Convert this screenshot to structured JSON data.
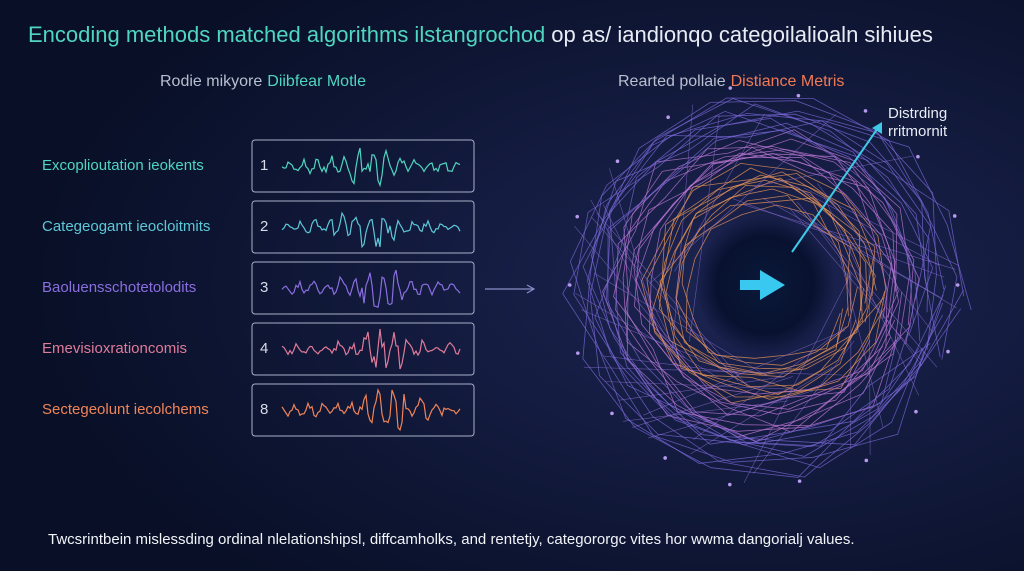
{
  "header": {
    "title_a": "Encoding methods matched algorithms ilstangrochod",
    "title_b": "op as/ iandionqo categoilalioaln sihiues"
  },
  "left_panel": {
    "subtitle_a": "Rodie mikyore",
    "subtitle_b": "Diibfear Motle",
    "rows": [
      {
        "label": "Excoplioutation ieokents",
        "number": "1"
      },
      {
        "label": "Categeogamt ieocloitmits",
        "number": "2"
      },
      {
        "label": "Baoluensschotetolodits",
        "number": "3"
      },
      {
        "label": "Emevisioxrationcomis",
        "number": "4"
      },
      {
        "label": "Sectegeolunt iecolchems",
        "number": "8"
      }
    ]
  },
  "right_panel": {
    "subtitle_a": "Rearted pollaie",
    "subtitle_b": "Distiance Metris",
    "annotation_line1": "Distrding",
    "annotation_line2": "rritmornit"
  },
  "footer": {
    "text": "Twcsrintbein mislessding ordinal nlelationshipsl, diffcamholks, and rentetjy, categororgc vites  hor wwma dangorialj values."
  }
}
